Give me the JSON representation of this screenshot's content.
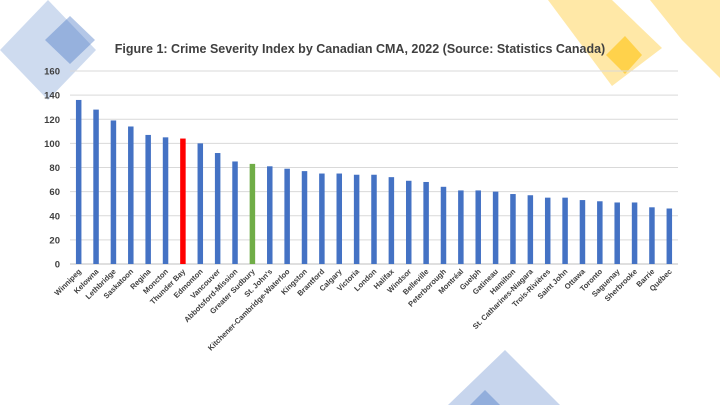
{
  "chart_data": {
    "type": "bar",
    "title": "Figure 1: Crime Severity Index by Canadian CMA, 2022 (Source: Statistics Canada)",
    "xlabel": "",
    "ylabel": "",
    "ylim": [
      0,
      160
    ],
    "yticks": [
      0,
      20,
      40,
      60,
      80,
      100,
      120,
      140,
      160
    ],
    "grid": true,
    "legend": "none",
    "default_color": "#4472C4",
    "categories": [
      "Winnipeg",
      "Kelowna",
      "Lethbridge",
      "Saskatoon",
      "Regina",
      "Moncton",
      "Thunder Bay",
      "Edmonton",
      "Vancouver",
      "Abbotsford-Mission",
      "Greater Sudbury",
      "St. John's",
      "Kitchener-Cambridge-Waterloo",
      "Kingston",
      "Brantford",
      "Calgary",
      "Victoria",
      "London",
      "Halifax",
      "Windsor",
      "Belleville",
      "Peterborough",
      "Montréal",
      "Guelph",
      "Gatineau",
      "Hamilton",
      "St. Catharines-Niagara",
      "Trois-Rivières",
      "Saint John",
      "Ottawa",
      "Toronto",
      "Saguenay",
      "Sherbrooke",
      "Barrie",
      "Québec"
    ],
    "values": [
      136,
      128,
      119,
      114,
      107,
      105,
      104,
      100,
      92,
      85,
      83,
      81,
      79,
      77,
      75,
      75,
      74,
      74,
      72,
      69,
      68,
      64,
      61,
      61,
      60,
      58,
      57,
      55,
      55,
      53,
      52,
      51,
      51,
      47,
      46
    ],
    "highlights": {
      "Thunder Bay": "#FF0000",
      "Greater Sudbury": "#70AD47"
    }
  }
}
